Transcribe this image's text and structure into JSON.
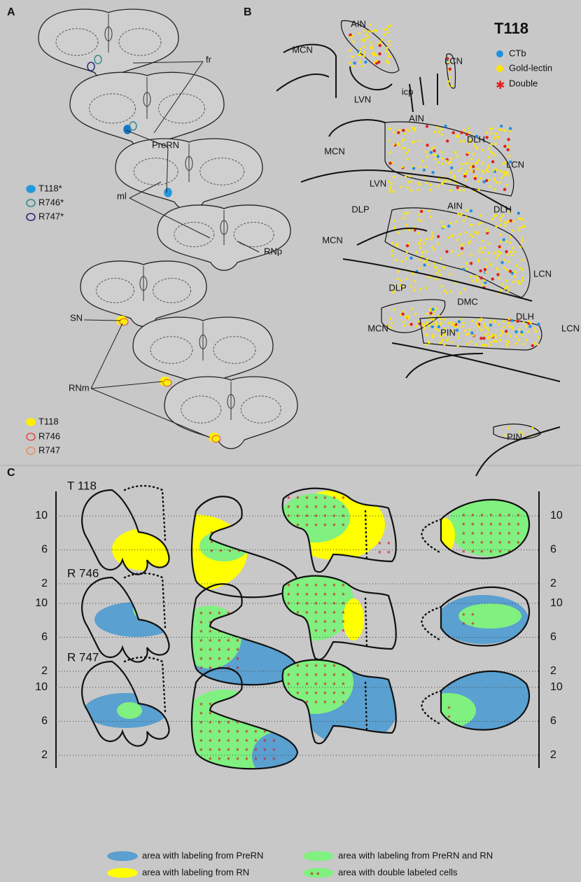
{
  "panels": {
    "A": "A",
    "B": "B",
    "C": "C"
  },
  "panel_a": {
    "labels": [
      "fr",
      "PreRN",
      "ml",
      "RNp",
      "SN",
      "RNm"
    ],
    "legend_top": [
      "T118*",
      "R746*",
      "R747*"
    ],
    "legend_bottom": [
      "T118",
      "R746",
      "R747"
    ]
  },
  "panel_b": {
    "title": "T118",
    "legend": [
      "CTb",
      "Gold-lectin",
      "Double"
    ],
    "labels": [
      "AIN",
      "MCN",
      "LCN",
      "LVN",
      "icp",
      "AIN",
      "DLH",
      "MCN",
      "LCN",
      "LVN",
      "DLP",
      "AIN",
      "DLH",
      "MCN",
      "LCN",
      "DLP",
      "DMC",
      "DLH",
      "MCN",
      "PIN",
      "LCN",
      "PIN"
    ]
  },
  "panel_c": {
    "rows": [
      "T 118",
      "R 746",
      "R 747"
    ],
    "ticks": [
      10,
      6,
      2
    ],
    "legend": [
      "area with labeling from PreRN",
      "area with labeling from PreRN and RN",
      "area with labeling from RN",
      "area with double labeled cells"
    ]
  }
}
